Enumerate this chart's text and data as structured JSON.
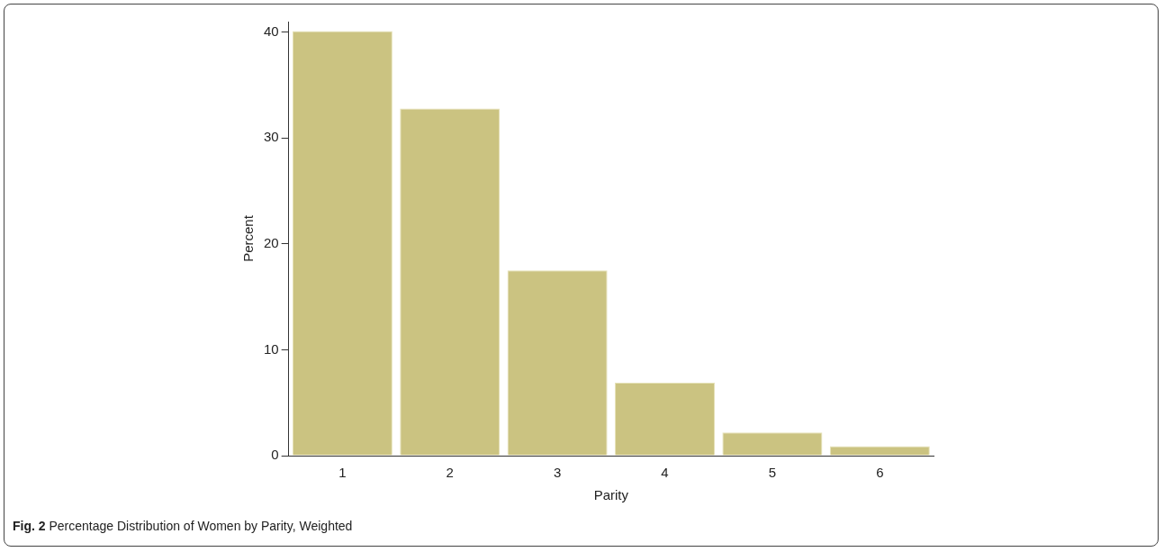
{
  "chart_data": {
    "type": "bar",
    "xlabel": "Parity",
    "ylabel": "Percent",
    "categories": [
      "1",
      "2",
      "3",
      "4",
      "5",
      "6"
    ],
    "values": [
      40.1,
      32.8,
      17.5,
      6.9,
      2.2,
      0.9
    ],
    "color": "#cbc381",
    "ylim": [
      0,
      41
    ],
    "yticks": [
      0,
      10,
      20,
      30,
      40
    ],
    "grid": false,
    "annotations": [
      "Fig. 2 Percentage Distribution of Women by Parity, Weighted"
    ]
  }
}
